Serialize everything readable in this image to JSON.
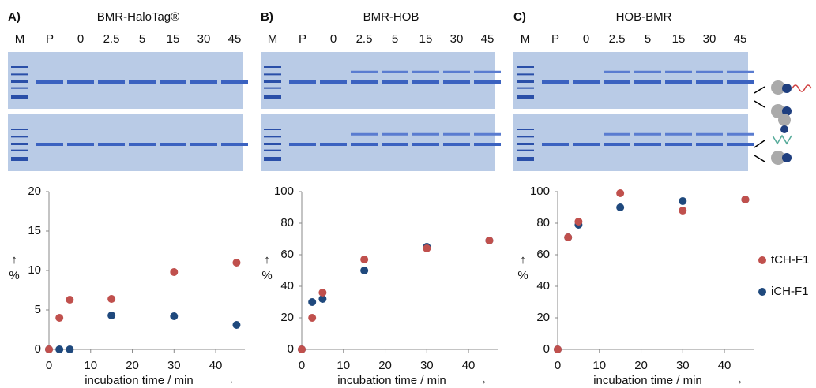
{
  "panels": [
    {
      "letter": "A)",
      "title": "BMR-HaloTag®",
      "lanes": [
        "M",
        "P",
        "0",
        "2.5",
        "5",
        "15",
        "30",
        "45"
      ]
    },
    {
      "letter": "B)",
      "title": "BMR-HOB",
      "lanes": [
        "M",
        "P",
        "0",
        "2.5",
        "5",
        "15",
        "30",
        "45"
      ]
    },
    {
      "letter": "C)",
      "title": "HOB-BMR",
      "lanes": [
        "M",
        "P",
        "0",
        "2.5",
        "5",
        "15",
        "30",
        "45"
      ]
    }
  ],
  "chart_data": [
    {
      "type": "scatter",
      "x_label": "incubation time / min",
      "x_arrow": "→",
      "y_label": "%",
      "y_arrow": "↑",
      "xlim": [
        0,
        47
      ],
      "xticks": [
        0,
        10,
        20,
        30,
        40
      ],
      "ylim": [
        0,
        20
      ],
      "yticks": [
        0,
        5,
        10,
        15,
        20
      ],
      "series": [
        {
          "name": "iCH-F1",
          "color": "#1f497d",
          "x": [
            0,
            2.5,
            5,
            15,
            30,
            45
          ],
          "values": [
            0,
            0,
            0,
            4.3,
            4.2,
            3.1
          ]
        },
        {
          "name": "tCH-F1",
          "color": "#c0504d",
          "x": [
            0,
            2.5,
            5,
            15,
            30,
            45
          ],
          "values": [
            0,
            4,
            6.3,
            6.4,
            9.8,
            11
          ]
        }
      ]
    },
    {
      "type": "scatter",
      "x_label": "incubation time / min",
      "x_arrow": "→",
      "y_label": "%",
      "y_arrow": "↑",
      "xlim": [
        0,
        47
      ],
      "xticks": [
        0,
        10,
        20,
        30,
        40
      ],
      "ylim": [
        0,
        100
      ],
      "yticks": [
        0,
        20,
        40,
        60,
        80,
        100
      ],
      "series": [
        {
          "name": "iCH-F1",
          "color": "#1f497d",
          "x": [
            0,
            2.5,
            5,
            15,
            30,
            45
          ],
          "values": [
            0,
            30,
            32,
            50,
            65,
            69
          ]
        },
        {
          "name": "tCH-F1",
          "color": "#c0504d",
          "x": [
            0,
            2.5,
            5,
            15,
            30,
            45
          ],
          "values": [
            0,
            20,
            36,
            57,
            64,
            69
          ]
        }
      ]
    },
    {
      "type": "scatter",
      "x_label": "incubation time / min",
      "x_arrow": "→",
      "y_label": "%",
      "y_arrow": "↑",
      "xlim": [
        0,
        47
      ],
      "xticks": [
        0,
        10,
        20,
        30,
        40
      ],
      "ylim": [
        0,
        100
      ],
      "yticks": [
        0,
        20,
        40,
        60,
        80,
        100
      ],
      "series": [
        {
          "name": "iCH-F1",
          "color": "#1f497d",
          "x": [
            0,
            2.5,
            5,
            15,
            30,
            45
          ],
          "values": [
            0,
            71,
            79,
            90,
            94,
            95
          ]
        },
        {
          "name": "tCH-F1",
          "color": "#c0504d",
          "x": [
            0,
            2.5,
            5,
            15,
            30,
            45
          ],
          "values": [
            0,
            71,
            81,
            99,
            88,
            95
          ]
        }
      ]
    }
  ]
}
